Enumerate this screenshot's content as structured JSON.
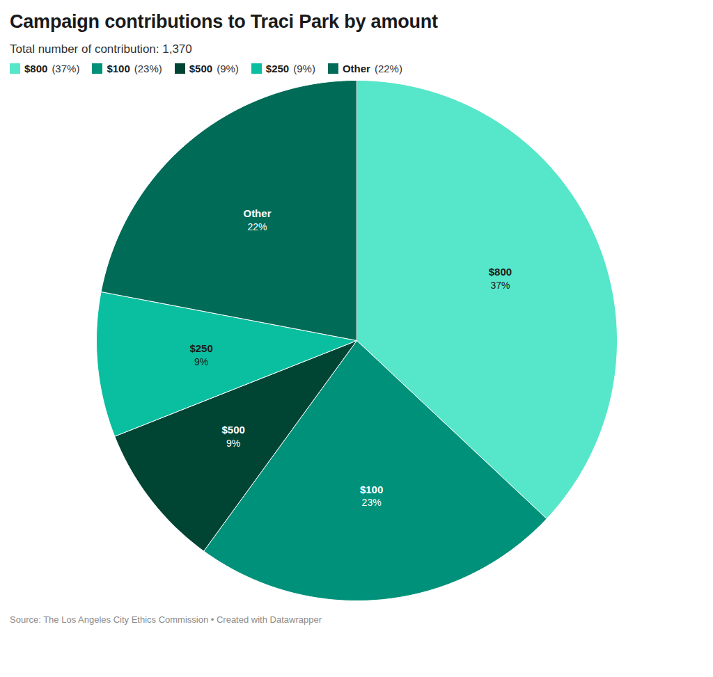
{
  "chart_data": {
    "type": "pie",
    "title": "Campaign contributions to Traci Park by amount",
    "subtitle": "Total number of contribution: 1,370",
    "categories": [
      "$800",
      "$100",
      "$500",
      "$250",
      "Other"
    ],
    "values": [
      37,
      23,
      9,
      9,
      22
    ],
    "value_labels": [
      "37%",
      "23%",
      "9%",
      "9%",
      "22%"
    ],
    "colors": [
      "#56e6c9",
      "#00917a",
      "#004433",
      "#0abfa0",
      "#006b57"
    ],
    "data_labels": true,
    "legend": "top",
    "caption": "Source: The Los Angeles City Ethics Commission • Created with Datawrapper"
  }
}
